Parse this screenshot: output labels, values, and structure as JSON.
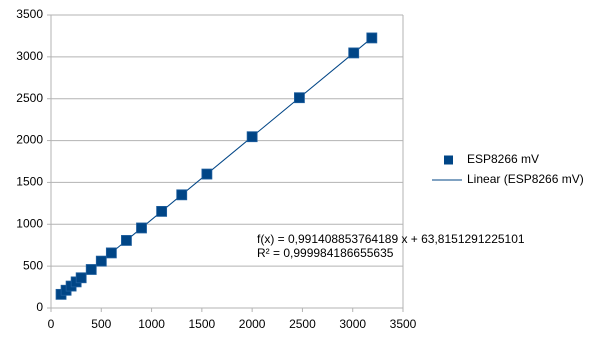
{
  "chart_data": {
    "type": "scatter",
    "x": [
      100,
      150,
      200,
      250,
      300,
      400,
      500,
      600,
      750,
      900,
      1100,
      1300,
      1550,
      2000,
      2470,
      3010,
      3190
    ],
    "series": [
      {
        "name": "ESP8266 mV",
        "color": "#004586",
        "values": [
          163,
          212,
          262,
          312,
          361,
          460,
          560,
          658,
          807,
          956,
          1154,
          1352,
          1600,
          2046,
          2512,
          3047,
          3226
        ]
      }
    ],
    "trendline": {
      "name": "Linear (ESP8266 mV)",
      "color": "#004586",
      "x": [
        100,
        3190
      ],
      "values": [
        163,
        3226
      ],
      "equation": "f(x) = 0,991408853764189 x + 63,8151291225101",
      "r_squared": "R² = 0,999984186655635"
    },
    "xlim": [
      0,
      3500
    ],
    "ylim": [
      0,
      3500
    ],
    "xticks": [
      0,
      500,
      1000,
      1500,
      2000,
      2500,
      3000,
      3500
    ],
    "yticks": [
      0,
      500,
      1000,
      1500,
      2000,
      2500,
      3000,
      3500
    ],
    "grid": true,
    "legend": "right"
  }
}
